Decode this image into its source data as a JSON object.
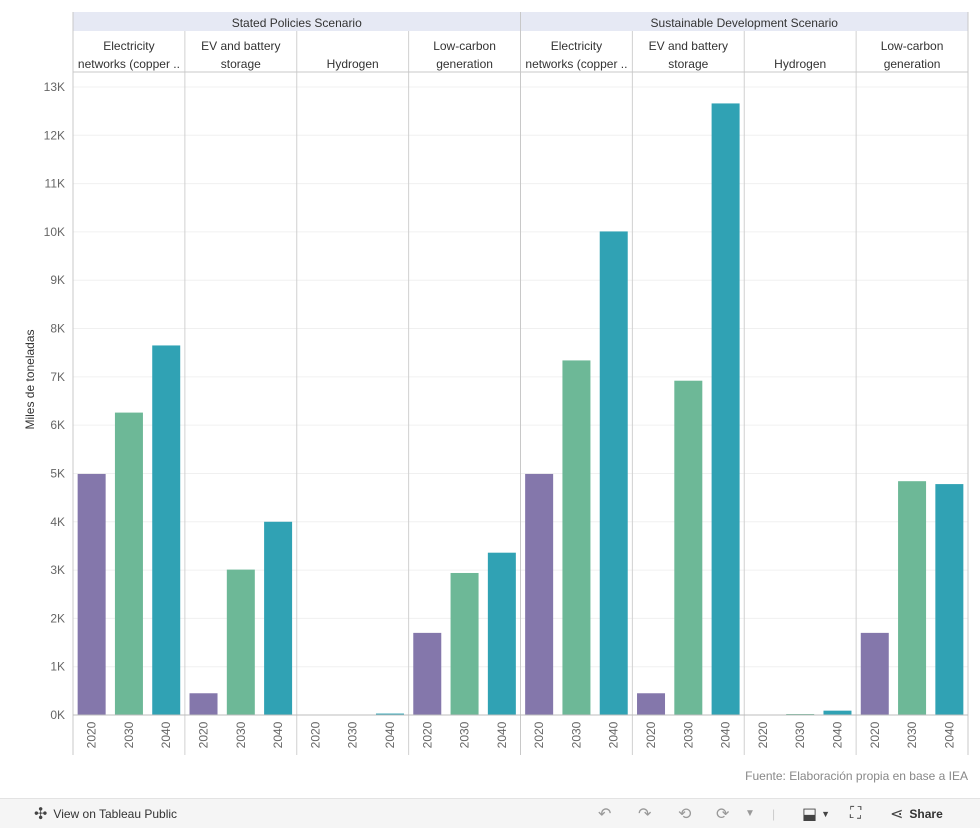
{
  "chart_data": {
    "type": "bar",
    "ylabel": "Miles de toneladas",
    "ylim": [
      0,
      13000
    ],
    "yticks": [
      0,
      1000,
      2000,
      3000,
      4000,
      5000,
      6000,
      7000,
      8000,
      9000,
      10000,
      11000,
      12000,
      13000
    ],
    "ytick_labels": [
      "0K",
      "1K",
      "2K",
      "3K",
      "4K",
      "5K",
      "6K",
      "7K",
      "8K",
      "9K",
      "10K",
      "11K",
      "12K",
      "13K"
    ],
    "years": [
      "2020",
      "2030",
      "2040"
    ],
    "colors": {
      "2020": "#8477ab",
      "2030": "#6db897",
      "2040": "#30a2b4"
    },
    "scenarios": [
      {
        "name": "Stated Policies Scenario",
        "groups": [
          {
            "label_lines": [
              "Electricity",
              "networks (copper .."
            ],
            "values": [
              4990,
              6260,
              7650
            ]
          },
          {
            "label_lines": [
              "EV and battery",
              "storage"
            ],
            "values": [
              450,
              3010,
              4000
            ]
          },
          {
            "label_lines": [
              "Hydrogen"
            ],
            "values": [
              0,
              0,
              30
            ]
          },
          {
            "label_lines": [
              "Low-carbon",
              "generation"
            ],
            "values": [
              1700,
              2940,
              3360
            ]
          }
        ]
      },
      {
        "name": "Sustainable Development Scenario",
        "groups": [
          {
            "label_lines": [
              "Electricity",
              "networks (copper .."
            ],
            "values": [
              4990,
              7340,
              10010
            ]
          },
          {
            "label_lines": [
              "EV and battery",
              "storage"
            ],
            "values": [
              450,
              6920,
              12660
            ]
          },
          {
            "label_lines": [
              "Hydrogen"
            ],
            "values": [
              0,
              20,
              90
            ]
          },
          {
            "label_lines": [
              "Low-carbon",
              "generation"
            ],
            "values": [
              1700,
              4840,
              4780
            ]
          }
        ]
      }
    ]
  },
  "source_text": "Fuente: Elaboración propia en base a IEA",
  "toolbar": {
    "view_label": "View on Tableau Public",
    "share_label": "Share"
  }
}
